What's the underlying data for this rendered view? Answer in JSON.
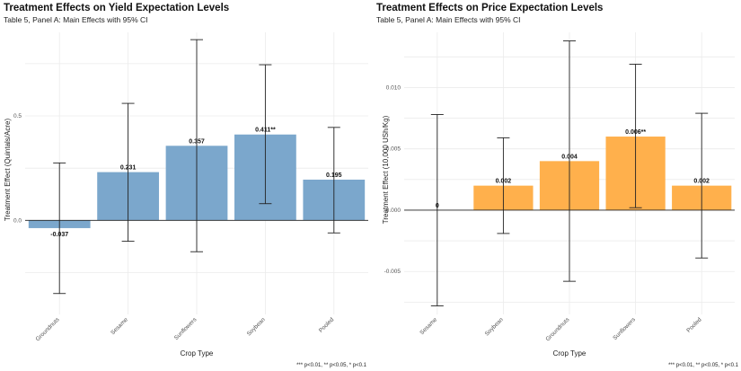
{
  "chart_data": [
    {
      "type": "bar",
      "title": "Treatment Effects on Yield Expectation Levels",
      "subtitle": "Table 5, Panel A: Main Effects with 95% CI",
      "xlabel": "Crop Type",
      "ylabel": "Treatment Effect (Quintals/Acre)",
      "categories": [
        "Groundnuts",
        "Sesame",
        "Sunflowers",
        "Soybean",
        "Pooled"
      ],
      "values": [
        -0.037,
        0.231,
        0.357,
        0.411,
        0.195
      ],
      "ci_lower": [
        -0.35,
        -0.1,
        -0.15,
        0.08,
        -0.06
      ],
      "ci_upper": [
        0.275,
        0.56,
        0.865,
        0.745,
        0.445
      ],
      "data_labels": [
        "-0.037",
        "0.231",
        "0.357",
        "0.411**",
        "0.195"
      ],
      "ylim": [
        -0.45,
        0.9
      ],
      "yticks": [
        0,
        0.5
      ],
      "ytick_labels": [
        "0.0",
        "0.5"
      ],
      "color": "#7ba7cc",
      "grid": true,
      "caption": ""
    },
    {
      "type": "bar",
      "title": "Treatment Effects on Price Expectation Levels",
      "subtitle": "Table 5, Panel A: Main Effects with 95% CI",
      "xlabel": "Crop Type",
      "ylabel": "Treatment Effect (10,000 USh/Kg)",
      "categories": [
        "Sesame",
        "Soybean",
        "Groundnuts",
        "Sunflowers",
        "Pooled"
      ],
      "values": [
        0.0,
        0.002,
        0.004,
        0.006,
        0.002
      ],
      "ci_lower": [
        -0.0078,
        -0.0019,
        -0.0058,
        0.0002,
        -0.0039
      ],
      "ci_upper": [
        0.0078,
        0.0059,
        0.0138,
        0.0119,
        0.0079
      ],
      "data_labels": [
        "0",
        "0.002",
        "0.004",
        "0.006**",
        "0.002"
      ],
      "ylim": [
        -0.0085,
        0.0145
      ],
      "yticks": [
        -0.005,
        0,
        0.005,
        0.01
      ],
      "ytick_labels": [
        "-0.005",
        "0.000",
        "0.005",
        "0.010"
      ],
      "color": "#ffb04c",
      "grid": true,
      "caption": "*** p<0.01, ** p<0.05, * p<0.1"
    }
  ],
  "footer_left": "*** p<0.01, ** p<0.05, * p<0.1"
}
